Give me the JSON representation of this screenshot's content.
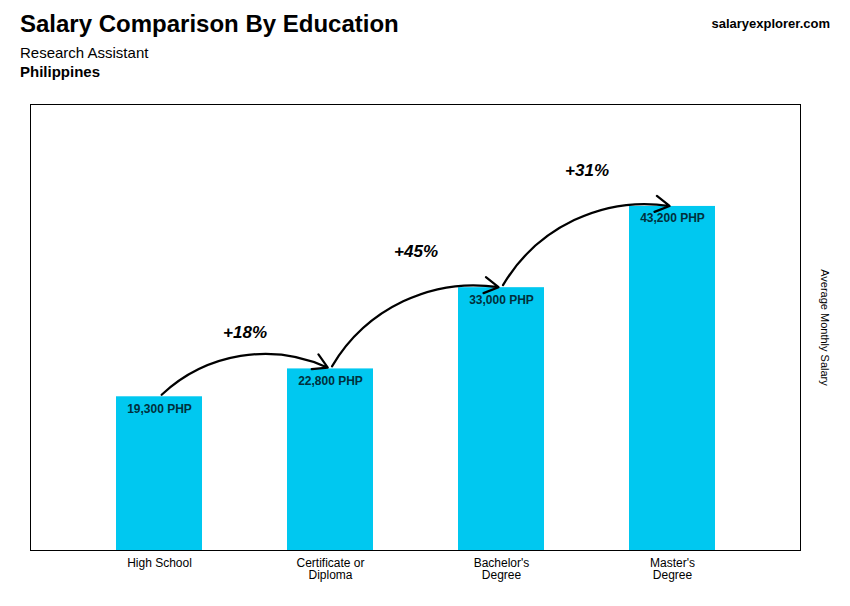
{
  "chart_data": {
    "type": "bar",
    "title": "Salary Comparison By Education",
    "subtitle": [
      "Research Assistant",
      "Philippines"
    ],
    "ylabel": "Average Monthly Salary",
    "categories": [
      "High School",
      "Certificate or\nDiploma",
      "Bachelor's\nDegree",
      "Master's\nDegree"
    ],
    "values": [
      19300,
      22800,
      33000,
      43200
    ],
    "value_labels": [
      "19,300 PHP",
      "22,800 PHP",
      "33,000 PHP",
      "43,200 PHP"
    ],
    "data_labels": true,
    "annotations": [
      "+18%",
      "+45%",
      "+31%"
    ],
    "source": "salaryexplorer.com",
    "color": "#00c8f0",
    "ylim": [
      0,
      56000
    ],
    "tick_labels": "x"
  }
}
